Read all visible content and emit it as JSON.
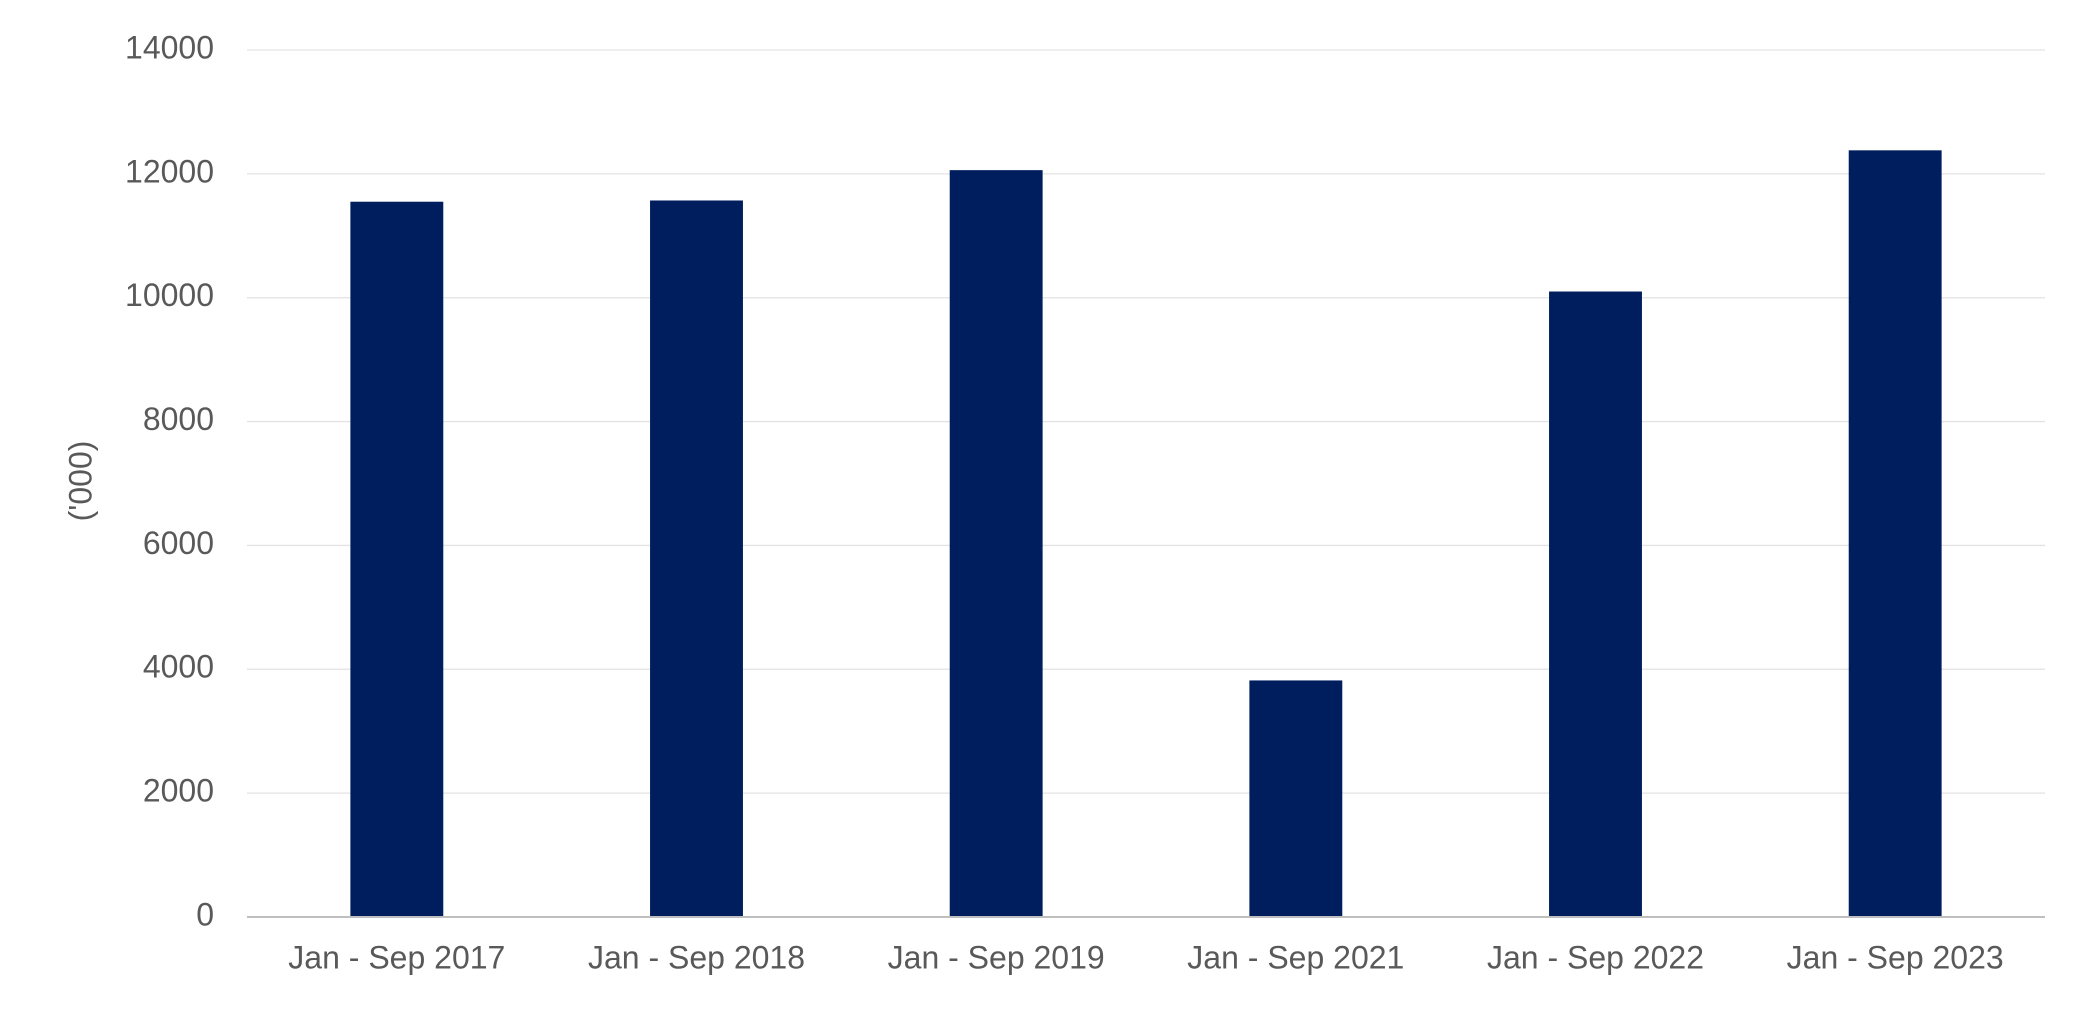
{
  "chart_data": {
    "type": "bar",
    "y_label": "('000)",
    "categories": [
      "Jan - Sep 2017",
      "Jan - Sep 2018",
      "Jan - Sep 2019",
      "Jan - Sep 2021",
      "Jan - Sep 2022",
      "Jan - Sep 2023"
    ],
    "values": [
      11550,
      11570,
      12060,
      3820,
      10100,
      12380
    ],
    "color": "#001e5e",
    "ylim": [
      0,
      14000
    ],
    "yticks": [
      0,
      2000,
      4000,
      6000,
      8000,
      10000,
      12000,
      14000
    ],
    "grid": true
  }
}
